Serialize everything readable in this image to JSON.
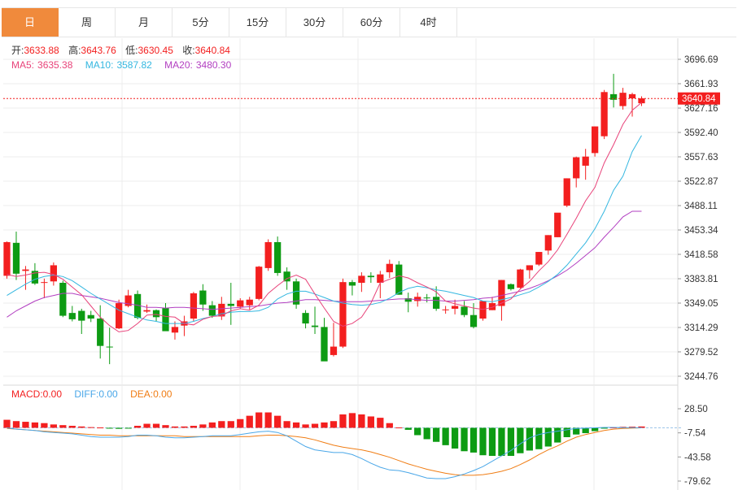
{
  "tabs": [
    {
      "label": "日",
      "active": true
    },
    {
      "label": "周",
      "active": false
    },
    {
      "label": "月",
      "active": false
    },
    {
      "label": "5分",
      "active": false
    },
    {
      "label": "15分",
      "active": false
    },
    {
      "label": "30分",
      "active": false
    },
    {
      "label": "60分",
      "active": false
    },
    {
      "label": "4时",
      "active": false
    }
  ],
  "ohlc_legend": {
    "open_label": "开:",
    "open_value": "3633.88",
    "high_label": "高:",
    "high_value": "3643.76",
    "low_label": "低:",
    "low_value": "3630.45",
    "close_label": "收:",
    "close_value": "3640.84"
  },
  "ma_legend": {
    "ma5_label": "MA5:",
    "ma5_value": "3635.38",
    "ma10_label": "MA10:",
    "ma10_value": "3587.82",
    "ma20_label": "MA20:",
    "ma20_value": "3480.30"
  },
  "macd_legend": {
    "macd_label": "MACD:",
    "macd_value": "0.00",
    "diff_label": "DIFF:",
    "diff_value": "0.00",
    "dea_label": "DEA:",
    "dea_value": "0.00"
  },
  "current_price_tag": "3640.84",
  "colors": {
    "up": "#f31f1f",
    "down": "#0d9b13",
    "accent": "#f08a3c",
    "ma5": "#e8437a",
    "ma10": "#34b7e0",
    "ma20": "#b23fc1",
    "diff": "#4aa7e8",
    "dea": "#f07d14",
    "grid": "#ececec"
  },
  "chart_data": [
    {
      "type": "candlestick",
      "title": "",
      "y_ticks": [
        "3696.69",
        "3661.93",
        "3627.16",
        "3592.40",
        "3557.63",
        "3522.87",
        "3488.11",
        "3453.34",
        "3418.58",
        "3383.81",
        "3349.05",
        "3314.29",
        "3279.52",
        "3244.76"
      ],
      "ylim": [
        3244.76,
        3696.69
      ],
      "grid": true,
      "current_price": 3640.84,
      "candles": [
        [
          3388,
          3437,
          3384,
          3436
        ],
        [
          3435,
          3451,
          3382,
          3391
        ],
        [
          3395,
          3402,
          3368,
          3397
        ],
        [
          3395,
          3406,
          3375,
          3377
        ],
        [
          3378,
          3384,
          3356,
          3379
        ],
        [
          3380,
          3407,
          3374,
          3403
        ],
        [
          3378,
          3381,
          3329,
          3331
        ],
        [
          3335,
          3345,
          3323,
          3326
        ],
        [
          3338,
          3341,
          3305,
          3324
        ],
        [
          3332,
          3338,
          3322,
          3327
        ],
        [
          3327,
          3346,
          3270,
          3288
        ],
        [
          3287,
          3314,
          3262,
          3286
        ],
        [
          3313,
          3354,
          3312,
          3349
        ],
        [
          3345,
          3368,
          3343,
          3360
        ],
        [
          3362,
          3367,
          3326,
          3328
        ],
        [
          3337,
          3347,
          3335,
          3339
        ],
        [
          3339,
          3340,
          3323,
          3329
        ],
        [
          3342,
          3349,
          3311,
          3309
        ],
        [
          3307,
          3323,
          3297,
          3315
        ],
        [
          3317,
          3331,
          3302,
          3323
        ],
        [
          3327,
          3365,
          3323,
          3363
        ],
        [
          3367,
          3376,
          3338,
          3347
        ],
        [
          3346,
          3352,
          3328,
          3331
        ],
        [
          3330,
          3358,
          3325,
          3348
        ],
        [
          3348,
          3378,
          3318,
          3345
        ],
        [
          3344,
          3356,
          3341,
          3353
        ],
        [
          3346,
          3358,
          3340,
          3354
        ],
        [
          3355,
          3402,
          3353,
          3401
        ],
        [
          3399,
          3440,
          3395,
          3436
        ],
        [
          3436,
          3444,
          3388,
          3392
        ],
        [
          3394,
          3400,
          3368,
          3380
        ],
        [
          3380,
          3384,
          3341,
          3347
        ],
        [
          3335,
          3339,
          3313,
          3320
        ],
        [
          3317,
          3344,
          3305,
          3315
        ],
        [
          3315,
          3328,
          3267,
          3266
        ],
        [
          3275,
          3321,
          3273,
          3287
        ],
        [
          3287,
          3384,
          3285,
          3379
        ],
        [
          3379,
          3382,
          3360,
          3374
        ],
        [
          3378,
          3393,
          3365,
          3388
        ],
        [
          3388,
          3393,
          3378,
          3386
        ],
        [
          3378,
          3395,
          3356,
          3390
        ],
        [
          3393,
          3411,
          3385,
          3405
        ],
        [
          3404,
          3409,
          3361,
          3361
        ],
        [
          3356,
          3364,
          3336,
          3351
        ],
        [
          3352,
          3364,
          3344,
          3358
        ],
        [
          3357,
          3362,
          3350,
          3356
        ],
        [
          3358,
          3373,
          3338,
          3341
        ],
        [
          3340,
          3345,
          3334,
          3340
        ],
        [
          3341,
          3354,
          3333,
          3345
        ],
        [
          3344,
          3352,
          3329,
          3332
        ],
        [
          3332,
          3349,
          3313,
          3315
        ],
        [
          3327,
          3352,
          3324,
          3352
        ],
        [
          3339,
          3358,
          3339,
          3349
        ],
        [
          3345,
          3382,
          3324,
          3382
        ],
        [
          3376,
          3377,
          3367,
          3369
        ],
        [
          3371,
          3398,
          3370,
          3397
        ],
        [
          3396,
          3403,
          3384,
          3403
        ],
        [
          3404,
          3422,
          3402,
          3422
        ],
        [
          3424,
          3446,
          3418,
          3446
        ],
        [
          3443,
          3477,
          3443,
          3478
        ],
        [
          3488,
          3527,
          3486,
          3527
        ],
        [
          3527,
          3558,
          3514,
          3557
        ],
        [
          3545,
          3569,
          3525,
          3558
        ],
        [
          3563,
          3601,
          3558,
          3601
        ],
        [
          3587,
          3653,
          3583,
          3650
        ],
        [
          3647,
          3676,
          3628,
          3639
        ],
        [
          3630,
          3656,
          3625,
          3649
        ],
        [
          3641,
          3649,
          3615,
          3647
        ],
        [
          3634,
          3644,
          3630,
          3641
        ]
      ],
      "ma5": [
        3390,
        3387,
        3389,
        3392,
        3393,
        3390,
        3383,
        3372,
        3361,
        3345,
        3329,
        3317,
        3308,
        3310,
        3320,
        3332,
        3333,
        3330,
        3329,
        3320,
        3318,
        3326,
        3330,
        3331,
        3338,
        3341,
        3339,
        3346,
        3363,
        3374,
        3384,
        3389,
        3383,
        3362,
        3342,
        3323,
        3316,
        3320,
        3329,
        3349,
        3378,
        3383,
        3388,
        3385,
        3378,
        3372,
        3365,
        3352,
        3348,
        3345,
        3342,
        3340,
        3343,
        3349,
        3355,
        3369,
        3380,
        3395,
        3408,
        3425,
        3447,
        3470,
        3495,
        3514,
        3549,
        3575,
        3604,
        3624,
        3635
      ],
      "ma10": [
        3360,
        3368,
        3376,
        3383,
        3387,
        3389,
        3387,
        3381,
        3372,
        3363,
        3355,
        3347,
        3339,
        3334,
        3329,
        3325,
        3323,
        3320,
        3320,
        3320,
        3323,
        3327,
        3330,
        3334,
        3336,
        3337,
        3337,
        3338,
        3343,
        3355,
        3362,
        3366,
        3366,
        3362,
        3357,
        3352,
        3349,
        3347,
        3346,
        3347,
        3350,
        3356,
        3364,
        3370,
        3373,
        3371,
        3368,
        3366,
        3363,
        3360,
        3357,
        3352,
        3351,
        3354,
        3357,
        3361,
        3365,
        3372,
        3380,
        3390,
        3403,
        3419,
        3435,
        3455,
        3480,
        3510,
        3530,
        3565,
        3588
      ],
      "ma20": [
        3329,
        3338,
        3345,
        3352,
        3357,
        3360,
        3363,
        3363,
        3360,
        3358,
        3356,
        3353,
        3350,
        3348,
        3346,
        3343,
        3343,
        3342,
        3343,
        3343,
        3342,
        3341,
        3340,
        3341,
        3342,
        3343,
        3344,
        3345,
        3347,
        3349,
        3350,
        3352,
        3354,
        3354,
        3353,
        3352,
        3351,
        3351,
        3351,
        3352,
        3353,
        3354,
        3355,
        3355,
        3354,
        3353,
        3353,
        3352,
        3352,
        3353,
        3354,
        3356,
        3357,
        3360,
        3363,
        3366,
        3370,
        3375,
        3381,
        3388,
        3396,
        3406,
        3417,
        3428,
        3443,
        3457,
        3472,
        3480,
        3480
      ]
    },
    {
      "type": "macd",
      "title": "",
      "y_ticks": [
        "28.50",
        "-7.54",
        "-43.58",
        "-79.62"
      ],
      "ylim": [
        -79.62,
        28.5
      ],
      "hist": [
        12,
        10,
        9,
        8,
        7,
        5,
        4,
        3,
        2,
        1,
        0.5,
        -0.5,
        -1.5,
        -1,
        3,
        6,
        6,
        4,
        2,
        2,
        3,
        5,
        8,
        10,
        10,
        13,
        18,
        23,
        23,
        18,
        10,
        8,
        5,
        6,
        8,
        10,
        20,
        22,
        20,
        17,
        15,
        7,
        0.5,
        -3,
        -11,
        -17,
        -21,
        -26,
        -31,
        -35,
        -37,
        -41,
        -42,
        -42,
        -42,
        -38,
        -34,
        -32,
        -28,
        -22,
        -14,
        -10,
        -8,
        -5,
        -1,
        0.5,
        1.5,
        1.7,
        2
      ],
      "diff": [
        0,
        -2,
        -3,
        -4,
        -6,
        -7,
        -8,
        -9,
        -11,
        -13,
        -14,
        -14,
        -14,
        -13,
        -11,
        -11,
        -12,
        -14,
        -15,
        -15,
        -14,
        -13,
        -12,
        -12,
        -12,
        -10,
        -8,
        -6,
        -5,
        -7,
        -12,
        -20,
        -28,
        -33,
        -35,
        -37,
        -37,
        -40,
        -46,
        -53,
        -59,
        -63,
        -64,
        -67,
        -71,
        -75,
        -76,
        -76,
        -73,
        -69,
        -64,
        -58,
        -50,
        -42,
        -34,
        -24,
        -15,
        -10,
        -7,
        -5,
        -3,
        -1,
        -0.5,
        0,
        0.5,
        0.5,
        0.3,
        0.2,
        0
      ],
      "dea": [
        -1,
        -2,
        -3,
        -4,
        -5,
        -6,
        -7,
        -8,
        -9,
        -10,
        -11,
        -11,
        -12,
        -12,
        -12,
        -12,
        -12,
        -12,
        -12,
        -13,
        -13,
        -13,
        -13,
        -13,
        -13,
        -13,
        -13,
        -12,
        -11,
        -11,
        -12,
        -13,
        -15,
        -18,
        -22,
        -26,
        -29,
        -31,
        -33,
        -36,
        -40,
        -44,
        -49,
        -54,
        -58,
        -62,
        -65,
        -68,
        -70,
        -71,
        -71,
        -70,
        -68,
        -65,
        -61,
        -55,
        -48,
        -40,
        -33,
        -27,
        -20,
        -14,
        -10,
        -7,
        -4,
        -2,
        -1,
        -0.5,
        0
      ]
    }
  ]
}
